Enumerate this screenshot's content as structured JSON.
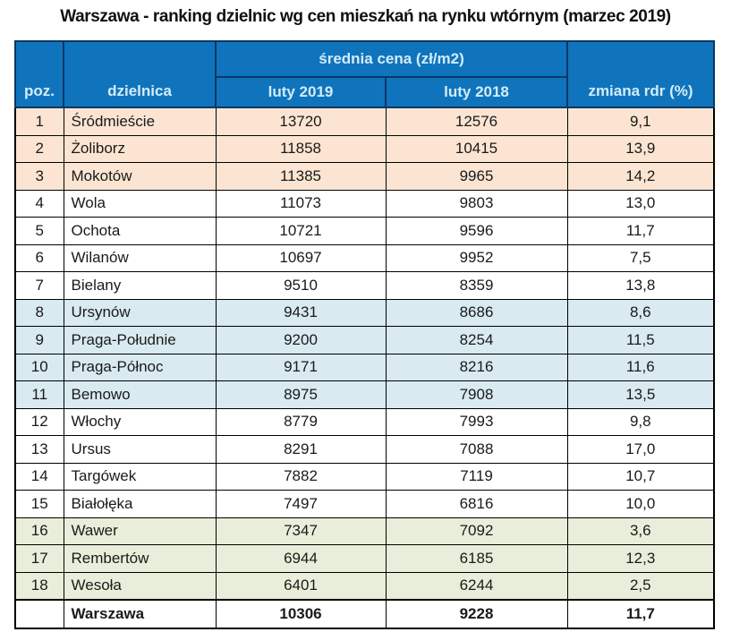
{
  "title": "Warszawa - ranking dzielnic wg cen mieszkań na rynku wtórnym (marzec 2019)",
  "table": {
    "header": {
      "poz": "poz.",
      "dzielnica": "dzielnica",
      "group": "średnia cena (zł/m2)",
      "col_2019": "luty 2019",
      "col_2018": "luty 2018",
      "zmiana": "zmiana rdr (%)"
    },
    "rows": [
      {
        "poz": "1",
        "dzielnica": "Śródmieście",
        "luty2019": "13720",
        "luty2018": "12576",
        "zmiana": "9,1",
        "band": "peach"
      },
      {
        "poz": "2",
        "dzielnica": "Żoliborz",
        "luty2019": "11858",
        "luty2018": "10415",
        "zmiana": "13,9",
        "band": "peach"
      },
      {
        "poz": "3",
        "dzielnica": "Mokotów",
        "luty2019": "11385",
        "luty2018": "9965",
        "zmiana": "14,2",
        "band": "peach"
      },
      {
        "poz": "4",
        "dzielnica": "Wola",
        "luty2019": "11073",
        "luty2018": "9803",
        "zmiana": "13,0",
        "band": "white"
      },
      {
        "poz": "5",
        "dzielnica": "Ochota",
        "luty2019": "10721",
        "luty2018": "9596",
        "zmiana": "11,7",
        "band": "white"
      },
      {
        "poz": "6",
        "dzielnica": "Wilanów",
        "luty2019": "10697",
        "luty2018": "9952",
        "zmiana": "7,5",
        "band": "white"
      },
      {
        "poz": "7",
        "dzielnica": "Bielany",
        "luty2019": "9510",
        "luty2018": "8359",
        "zmiana": "13,8",
        "band": "white"
      },
      {
        "poz": "8",
        "dzielnica": "Ursynów",
        "luty2019": "9431",
        "luty2018": "8686",
        "zmiana": "8,6",
        "band": "blue"
      },
      {
        "poz": "9",
        "dzielnica": "Praga-Południe",
        "luty2019": "9200",
        "luty2018": "8254",
        "zmiana": "11,5",
        "band": "blue"
      },
      {
        "poz": "10",
        "dzielnica": "Praga-Północ",
        "luty2019": "9171",
        "luty2018": "8216",
        "zmiana": "11,6",
        "band": "blue"
      },
      {
        "poz": "11",
        "dzielnica": "Bemowo",
        "luty2019": "8975",
        "luty2018": "7908",
        "zmiana": "13,5",
        "band": "blue"
      },
      {
        "poz": "12",
        "dzielnica": "Włochy",
        "luty2019": "8779",
        "luty2018": "7993",
        "zmiana": "9,8",
        "band": "white"
      },
      {
        "poz": "13",
        "dzielnica": "Ursus",
        "luty2019": "8291",
        "luty2018": "7088",
        "zmiana": "17,0",
        "band": "white"
      },
      {
        "poz": "14",
        "dzielnica": "Targówek",
        "luty2019": "7882",
        "luty2018": "7119",
        "zmiana": "10,7",
        "band": "white"
      },
      {
        "poz": "15",
        "dzielnica": "Białołęka",
        "luty2019": "7497",
        "luty2018": "6816",
        "zmiana": "10,0",
        "band": "white"
      },
      {
        "poz": "16",
        "dzielnica": "Wawer",
        "luty2019": "7347",
        "luty2018": "7092",
        "zmiana": "3,6",
        "band": "green"
      },
      {
        "poz": "17",
        "dzielnica": "Rembertów",
        "luty2019": "6944",
        "luty2018": "6185",
        "zmiana": "12,3",
        "band": "green"
      },
      {
        "poz": "18",
        "dzielnica": "Wesoła",
        "luty2019": "6401",
        "luty2018": "6244",
        "zmiana": "2,5",
        "band": "green"
      }
    ],
    "summary": {
      "poz": "",
      "dzielnica": "Warszawa",
      "luty2019": "10306",
      "luty2018": "9228",
      "zmiana": "11,7"
    }
  },
  "colors": {
    "header-bg": "#1074bd",
    "header-text": "#d3ecf9",
    "header-divider": "#0a3765",
    "border": "#000000",
    "band-peach": "#fbe5d2",
    "band-white": "#ffffff",
    "band-blue": "#d9eaf1",
    "band-green": "#e9eeda",
    "text": "#1a1a1a"
  },
  "chart_data": {
    "type": "table",
    "title": "Warszawa - ranking dzielnic wg cen mieszkań na rynku wtórnym (marzec 2019)",
    "columns": [
      "poz.",
      "dzielnica",
      "luty 2019",
      "luty 2018",
      "zmiana rdr (%)"
    ],
    "column_group": {
      "label": "średnia cena (zł/m2)",
      "spans": [
        "luty 2019",
        "luty 2018"
      ]
    },
    "rows": [
      [
        1,
        "Śródmieście",
        13720,
        12576,
        9.1
      ],
      [
        2,
        "Żoliborz",
        11858,
        10415,
        13.9
      ],
      [
        3,
        "Mokotów",
        11385,
        9965,
        14.2
      ],
      [
        4,
        "Wola",
        11073,
        9803,
        13.0
      ],
      [
        5,
        "Ochota",
        10721,
        9596,
        11.7
      ],
      [
        6,
        "Wilanów",
        10697,
        9952,
        7.5
      ],
      [
        7,
        "Bielany",
        9510,
        8359,
        13.8
      ],
      [
        8,
        "Ursynów",
        9431,
        8686,
        8.6
      ],
      [
        9,
        "Praga-Południe",
        9200,
        8254,
        11.5
      ],
      [
        10,
        "Praga-Północ",
        9171,
        8216,
        11.6
      ],
      [
        11,
        "Bemowo",
        8975,
        7908,
        13.5
      ],
      [
        12,
        "Włochy",
        8779,
        7993,
        9.8
      ],
      [
        13,
        "Ursus",
        8291,
        7088,
        17.0
      ],
      [
        14,
        "Targówek",
        7882,
        7119,
        10.7
      ],
      [
        15,
        "Białołęka",
        7497,
        6816,
        10.0
      ],
      [
        16,
        "Wawer",
        7347,
        7092,
        3.6
      ],
      [
        17,
        "Rembertów",
        6944,
        6185,
        12.3
      ],
      [
        18,
        "Wesoła",
        6401,
        6244,
        2.5
      ]
    ],
    "summary_row": [
      null,
      "Warszawa",
      10306,
      9228,
      11.7
    ]
  }
}
